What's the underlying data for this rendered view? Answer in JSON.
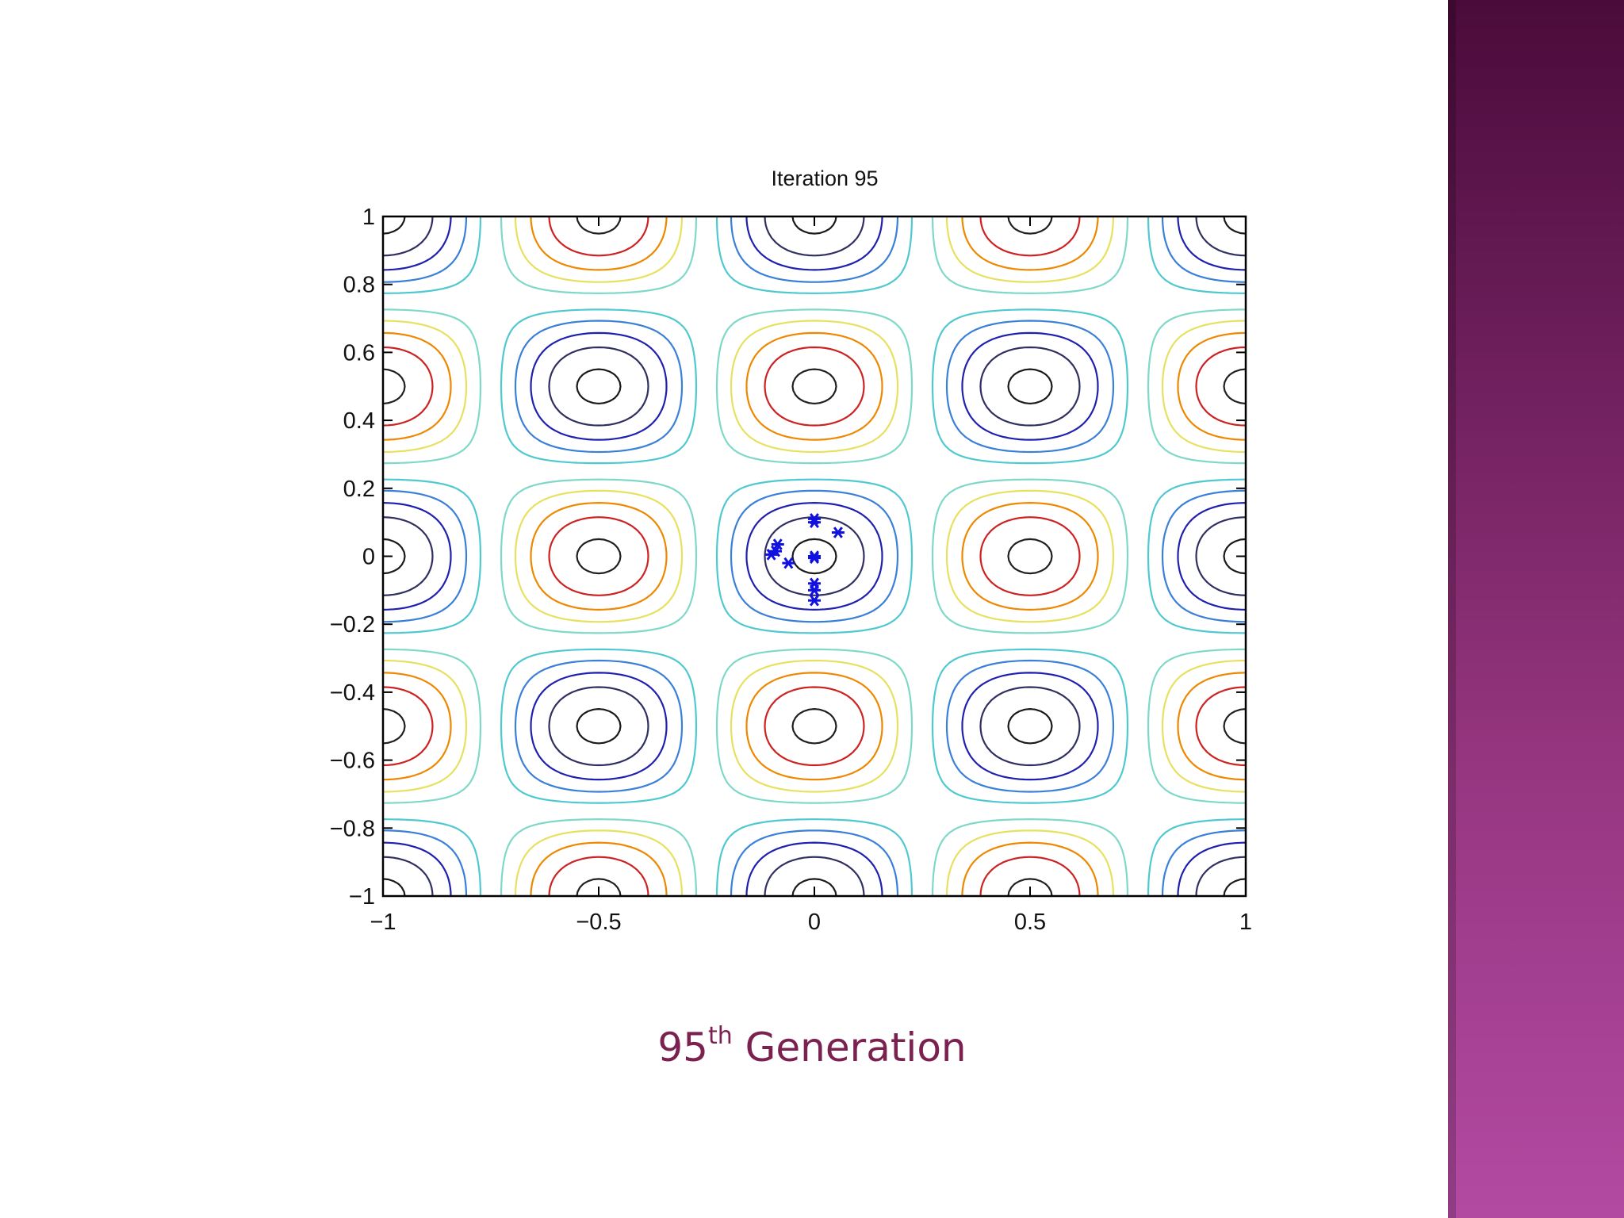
{
  "chart_data": {
    "type": "contour",
    "title": "Iteration 95",
    "xlabel": "",
    "ylabel": "",
    "xlim": [
      -1,
      1
    ],
    "ylim": [
      -1,
      1
    ],
    "xticks": [
      -1,
      -0.5,
      0,
      0.5,
      1
    ],
    "xtick_labels": [
      "−1",
      "−0.5",
      "0",
      "0.5",
      "1"
    ],
    "yticks": [
      1,
      0.8,
      0.6,
      0.4,
      0.2,
      0,
      -0.2,
      -0.4,
      -0.6,
      -0.8,
      -1
    ],
    "ytick_labels": [
      "1",
      "0.8",
      "0.6",
      "0.4",
      "0.2",
      "0",
      "−0.2",
      "−0.4",
      "−0.6",
      "−0.8",
      "−1"
    ],
    "grid": false,
    "function": "cos(2*pi*x) * cos(2*pi*y)",
    "contour_levels": [
      -0.95,
      -0.75,
      -0.55,
      -0.35,
      -0.15,
      0.15,
      0.35,
      0.55,
      0.75,
      0.95
    ],
    "contour_colors": [
      "#202020",
      "#cc2222",
      "#ee8800",
      "#e8e060",
      "#7fd8c8",
      "#50c8d0",
      "#3a7fd8",
      "#2020b0",
      "#303060",
      "#1a1a1a"
    ],
    "points": [
      {
        "x": 0.0,
        "y": 0.11
      },
      {
        "x": 0.0,
        "y": 0.1
      },
      {
        "x": 0.055,
        "y": 0.07
      },
      {
        "x": -0.085,
        "y": 0.035
      },
      {
        "x": -0.09,
        "y": 0.015
      },
      {
        "x": -0.1,
        "y": 0.005
      },
      {
        "x": -0.06,
        "y": -0.02
      },
      {
        "x": 0.0,
        "y": 0.0
      },
      {
        "x": 0.0,
        "y": -0.005
      },
      {
        "x": 0.0,
        "y": -0.08
      },
      {
        "x": 0.0,
        "y": -0.1
      },
      {
        "x": 0.0,
        "y": -0.13
      }
    ],
    "point_color": "#1010e0"
  },
  "caption": {
    "number": "95",
    "suffix": "th",
    "text": " Generation"
  }
}
